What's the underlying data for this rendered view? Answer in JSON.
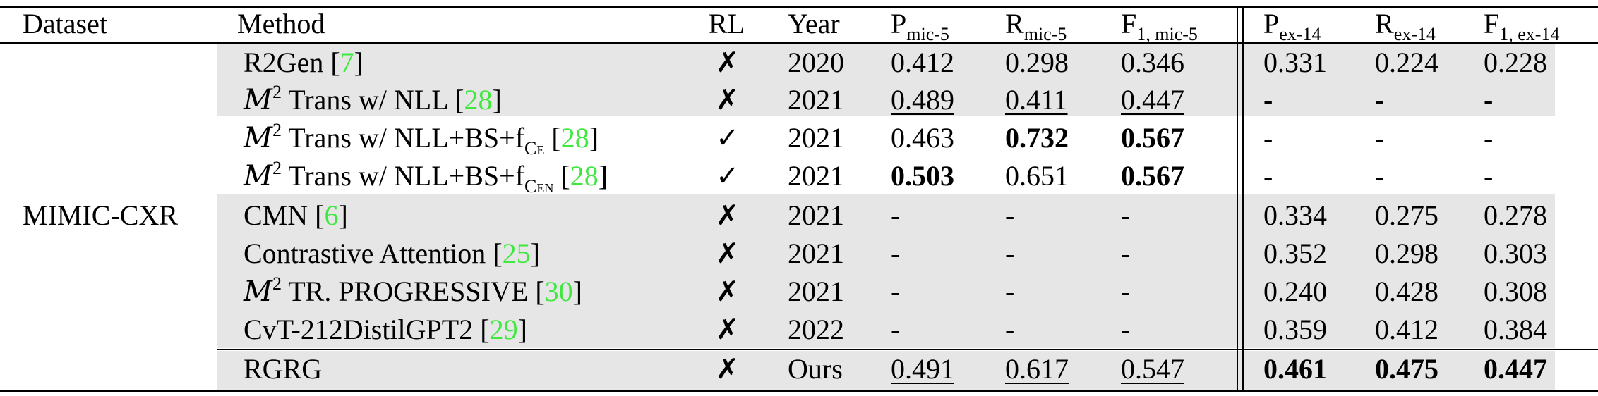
{
  "headers": {
    "dataset": "Dataset",
    "method": "Method",
    "rl": "RL",
    "year": "Year",
    "p_mic": "P",
    "p_mic_sub": "mic-5",
    "r_mic": "R",
    "r_mic_sub": "mic-5",
    "f_mic": "F",
    "f_mic_sub": "1, mic-5",
    "p_ex": "P",
    "p_ex_sub": "ex-14",
    "r_ex": "R",
    "r_ex_sub": "ex-14",
    "f_ex": "F",
    "f_ex_sub": "1, ex-14"
  },
  "dataset_label": "MIMIC-CXR",
  "rows": [
    {
      "method": "R2Gen",
      "cite": "7",
      "rl": "✗",
      "year": "2020",
      "p_mic": "0.412",
      "r_mic": "0.298",
      "f_mic": "0.346",
      "p_ex": "0.331",
      "r_ex": "0.224",
      "f_ex": "0.228"
    },
    {
      "method_pre": "M",
      "method_sup": "2",
      "method": "Trans w/ NLL",
      "cite": "28",
      "rl": "✗",
      "year": "2021",
      "p_mic": "0.489",
      "r_mic": "0.411",
      "f_mic": "0.447",
      "p_ex": "-",
      "r_ex": "-",
      "f_ex": "-"
    },
    {
      "method_pre": "M",
      "method_sup": "2",
      "method": "Trans w/ NLL+BS+f",
      "method_sub": "C",
      "method_subsub": "E",
      "cite": "28",
      "rl": "✓",
      "year": "2021",
      "p_mic": "0.463",
      "r_mic": "0.732",
      "f_mic": "0.567",
      "p_ex": "-",
      "r_ex": "-",
      "f_ex": "-"
    },
    {
      "method_pre": "M",
      "method_sup": "2",
      "method": "Trans w/ NLL+BS+f",
      "method_sub": "C",
      "method_subsub": "EN",
      "cite": "28",
      "rl": "✓",
      "year": "2021",
      "p_mic": "0.503",
      "r_mic": "0.651",
      "f_mic": "0.567",
      "p_ex": "-",
      "r_ex": "-",
      "f_ex": "-"
    },
    {
      "method": "CMN",
      "cite": "6",
      "rl": "✗",
      "year": "2021",
      "p_mic": "-",
      "r_mic": "-",
      "f_mic": "-",
      "p_ex": "0.334",
      "r_ex": "0.275",
      "f_ex": "0.278"
    },
    {
      "method": "Contrastive Attention",
      "cite": "25",
      "rl": "✗",
      "year": "2021",
      "p_mic": "-",
      "r_mic": "-",
      "f_mic": "-",
      "p_ex": "0.352",
      "r_ex": "0.298",
      "f_ex": "0.303"
    },
    {
      "method_pre": "M",
      "method_sup": "2",
      "method": "TR. PROGRESSIVE",
      "cite": "30",
      "rl": "✗",
      "year": "2021",
      "p_mic": "-",
      "r_mic": "-",
      "f_mic": "-",
      "p_ex": "0.240",
      "r_ex": "0.428",
      "f_ex": "0.308"
    },
    {
      "method": "CvT-212DistilGPT2",
      "cite": "29",
      "rl": "✗",
      "year": "2022",
      "p_mic": "-",
      "r_mic": "-",
      "f_mic": "-",
      "p_ex": "0.359",
      "r_ex": "0.412",
      "f_ex": "0.384"
    },
    {
      "method": "RGRG",
      "rl": "✗",
      "year": "Ours",
      "p_mic": "0.491",
      "r_mic": "0.617",
      "f_mic": "0.547",
      "p_ex": "0.461",
      "r_ex": "0.475",
      "f_ex": "0.447"
    }
  ]
}
